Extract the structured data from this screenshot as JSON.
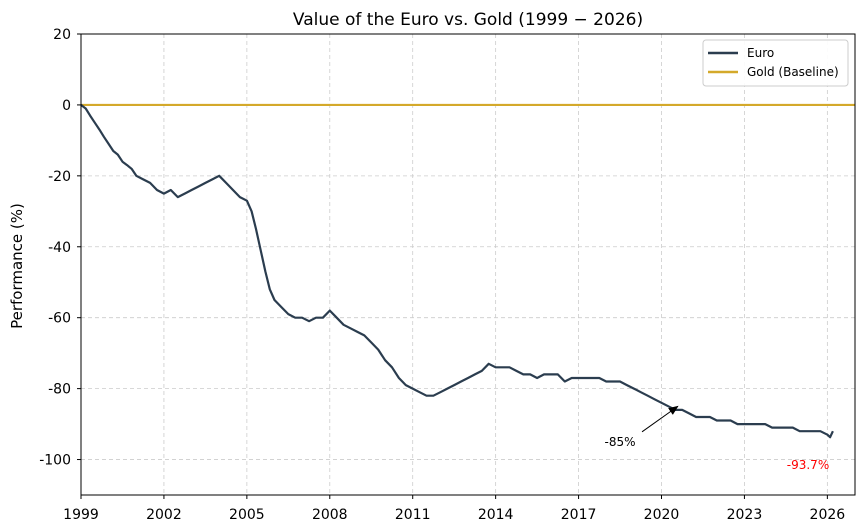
{
  "chart_data": {
    "type": "line",
    "title": "Value of the Euro vs.  Gold (1999 − 2026)",
    "xlabel": "",
    "ylabel": "Performance (%)",
    "xlim": [
      1999,
      2027
    ],
    "ylim": [
      -110,
      20
    ],
    "x_ticks": [
      1999,
      2002,
      2005,
      2008,
      2011,
      2014,
      2017,
      2020,
      2023,
      2026
    ],
    "y_ticks": [
      20,
      0,
      -20,
      -40,
      -60,
      -80,
      -100
    ],
    "grid": true,
    "legend_position": "top-right",
    "colors": {
      "euro": "#2b3d4f",
      "gold": "#d4a92a",
      "arrow": "#000000",
      "final_label": "#ff0000",
      "grid": "#cccccc"
    },
    "series": [
      {
        "name": "Euro",
        "x": [
          1999.0,
          1999.17,
          1999.33,
          1999.5,
          1999.67,
          1999.83,
          2000.0,
          2000.17,
          2000.33,
          2000.5,
          2000.67,
          2000.83,
          2001.0,
          2001.25,
          2001.5,
          2001.75,
          2002.0,
          2002.25,
          2002.5,
          2002.75,
          2003.0,
          2003.25,
          2003.5,
          2003.75,
          2004.0,
          2004.25,
          2004.5,
          2004.75,
          2005.0,
          2005.17,
          2005.33,
          2005.5,
          2005.67,
          2005.83,
          2006.0,
          2006.25,
          2006.5,
          2006.75,
          2007.0,
          2007.25,
          2007.5,
          2007.75,
          2008.0,
          2008.25,
          2008.5,
          2008.75,
          2009.0,
          2009.25,
          2009.5,
          2009.75,
          2010.0,
          2010.25,
          2010.5,
          2010.75,
          2011.0,
          2011.25,
          2011.5,
          2011.75,
          2012.0,
          2012.25,
          2012.5,
          2012.75,
          2013.0,
          2013.25,
          2013.5,
          2013.75,
          2014.0,
          2014.25,
          2014.5,
          2014.75,
          2015.0,
          2015.25,
          2015.5,
          2015.75,
          2016.0,
          2016.25,
          2016.5,
          2016.75,
          2017.0,
          2017.25,
          2017.5,
          2017.75,
          2018.0,
          2018.25,
          2018.5,
          2018.75,
          2019.0,
          2019.25,
          2019.5,
          2019.75,
          2020.0,
          2020.25,
          2020.5,
          2020.75,
          2021.0,
          2021.25,
          2021.5,
          2021.75,
          2022.0,
          2022.25,
          2022.5,
          2022.75,
          2023.0,
          2023.25,
          2023.5,
          2023.75,
          2024.0,
          2024.25,
          2024.5,
          2024.75,
          2025.0,
          2025.25,
          2025.5,
          2025.75,
          2026.0,
          2026.1,
          2026.2
        ],
        "values": [
          0,
          -1,
          -3,
          -5,
          -7,
          -9,
          -11,
          -13,
          -14,
          -16,
          -17,
          -18,
          -20,
          -21,
          -22,
          -24,
          -25,
          -24,
          -26,
          -25,
          -24,
          -23,
          -22,
          -21,
          -20,
          -22,
          -24,
          -26,
          -27,
          -30,
          -35,
          -41,
          -47,
          -52,
          -55,
          -57,
          -59,
          -60,
          -60,
          -61,
          -60,
          -60,
          -58,
          -60,
          -62,
          -63,
          -64,
          -65,
          -67,
          -69,
          -72,
          -74,
          -77,
          -79,
          -80,
          -81,
          -82,
          -82,
          -81,
          -80,
          -79,
          -78,
          -77,
          -76,
          -75,
          -73,
          -74,
          -74,
          -74,
          -75,
          -76,
          -76,
          -77,
          -76,
          -76,
          -76,
          -78,
          -77,
          -77,
          -77,
          -77,
          -77,
          -78,
          -78,
          -78,
          -79,
          -80,
          -81,
          -82,
          -83,
          -84,
          -85,
          -86,
          -86,
          -87,
          -88,
          -88,
          -88,
          -89,
          -89,
          -89,
          -90,
          -90,
          -90,
          -90,
          -90,
          -91,
          -91,
          -91,
          -91,
          -92,
          -92,
          -92,
          -92,
          -93,
          -93.7,
          -92
        ]
      },
      {
        "name": "Gold (Baseline)",
        "x": [
          1999,
          2027
        ],
        "values": [
          0,
          0
        ]
      }
    ],
    "annotations": [
      {
        "text": "-85%",
        "point": [
          2020.3,
          -85
        ],
        "text_at": [
          2018.5,
          -95
        ]
      },
      {
        "text": "-93.7%",
        "at": [
          2025.3,
          -101.5
        ]
      }
    ]
  }
}
